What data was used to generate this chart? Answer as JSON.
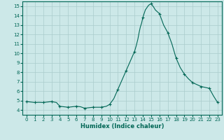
{
  "xlabel": "Humidex (Indice chaleur)",
  "ylabel": "",
  "bg_color": "#cce8e8",
  "line_color": "#006655",
  "marker_color": "#006655",
  "grid_color": "#aacccc",
  "xlim": [
    -0.5,
    23.5
  ],
  "ylim": [
    3.5,
    15.5
  ],
  "yticks": [
    4,
    5,
    6,
    7,
    8,
    9,
    10,
    11,
    12,
    13,
    14,
    15
  ],
  "xticks": [
    0,
    1,
    2,
    3,
    4,
    5,
    6,
    7,
    8,
    9,
    10,
    11,
    12,
    13,
    14,
    15,
    16,
    17,
    18,
    19,
    20,
    21,
    22,
    23
  ],
  "x": [
    0,
    0.5,
    1,
    1.5,
    2,
    2.5,
    3,
    3.3,
    3.6,
    4,
    4.5,
    5,
    5.5,
    6,
    6.5,
    7,
    7.5,
    8,
    8.5,
    9,
    9.3,
    9.6,
    10,
    10.5,
    11,
    11.5,
    12,
    12.5,
    13,
    13.2,
    13.4,
    13.55,
    13.7,
    13.85,
    14,
    14.15,
    14.3,
    14.5,
    14.7,
    15,
    15.3,
    15.5,
    16,
    16.5,
    17,
    17.5,
    18,
    18.5,
    19,
    19.5,
    20,
    20.5,
    21,
    21.5,
    22,
    22.5,
    23
  ],
  "y": [
    4.9,
    4.85,
    4.8,
    4.82,
    4.8,
    4.85,
    4.9,
    4.85,
    4.8,
    4.4,
    4.35,
    4.3,
    4.35,
    4.4,
    4.35,
    4.2,
    4.25,
    4.3,
    4.3,
    4.3,
    4.35,
    4.4,
    4.6,
    5.2,
    6.2,
    7.2,
    8.2,
    9.2,
    10.2,
    10.8,
    11.5,
    12.2,
    12.8,
    13.2,
    13.8,
    14.2,
    14.6,
    14.85,
    15.1,
    15.25,
    14.9,
    14.6,
    14.2,
    13.0,
    12.2,
    11.0,
    9.5,
    8.5,
    7.8,
    7.3,
    6.9,
    6.7,
    6.5,
    6.4,
    6.3,
    5.5,
    4.8
  ],
  "marker_x": [
    0,
    1,
    2,
    3,
    4,
    5,
    6,
    7,
    8,
    9,
    10,
    11,
    12,
    13,
    14,
    15,
    16,
    17,
    18,
    19,
    20,
    21,
    22,
    23
  ],
  "marker_y": [
    4.9,
    4.8,
    4.8,
    4.9,
    4.4,
    4.3,
    4.4,
    4.2,
    4.3,
    4.3,
    4.6,
    6.2,
    8.2,
    10.2,
    13.8,
    15.25,
    14.2,
    12.2,
    9.5,
    7.8,
    6.9,
    6.5,
    6.3,
    4.8
  ]
}
